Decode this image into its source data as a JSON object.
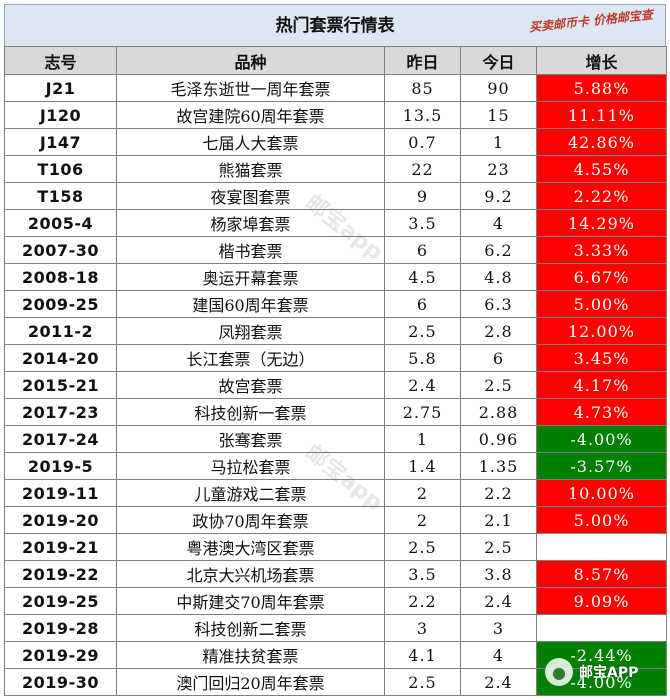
{
  "title": "热门套票行情表",
  "stamp": "买卖邮币卡 价格邮宝查",
  "watermark": "邮宝app",
  "badge": {
    "icon": "chat-bubble-icon",
    "label": "邮宝APP"
  },
  "colors": {
    "up": "#ff0000",
    "down": "#008000",
    "header": "#d9d9d9",
    "title": "#dbe7f3"
  },
  "columns": [
    "志号",
    "品种",
    "昨日",
    "今日",
    "增长"
  ],
  "rows": [
    {
      "code": "J21",
      "name": "毛泽东逝世一周年套票",
      "yesterday": "85",
      "today": "90",
      "growth": "5.88%",
      "trend": "up"
    },
    {
      "code": "J120",
      "name": "故宫建院60周年套票",
      "yesterday": "13.5",
      "today": "15",
      "growth": "11.11%",
      "trend": "up"
    },
    {
      "code": "J147",
      "name": "七届人大套票",
      "yesterday": "0.7",
      "today": "1",
      "growth": "42.86%",
      "trend": "up"
    },
    {
      "code": "T106",
      "name": "熊猫套票",
      "yesterday": "22",
      "today": "23",
      "growth": "4.55%",
      "trend": "up"
    },
    {
      "code": "T158",
      "name": "夜宴图套票",
      "yesterday": "9",
      "today": "9.2",
      "growth": "2.22%",
      "trend": "up"
    },
    {
      "code": "2005-4",
      "name": "杨家埠套票",
      "yesterday": "3.5",
      "today": "4",
      "growth": "14.29%",
      "trend": "up"
    },
    {
      "code": "2007-30",
      "name": "楷书套票",
      "yesterday": "6",
      "today": "6.2",
      "growth": "3.33%",
      "trend": "up"
    },
    {
      "code": "2008-18",
      "name": "奥运开幕套票",
      "yesterday": "4.5",
      "today": "4.8",
      "growth": "6.67%",
      "trend": "up"
    },
    {
      "code": "2009-25",
      "name": "建国60周年套票",
      "yesterday": "6",
      "today": "6.3",
      "growth": "5.00%",
      "trend": "up"
    },
    {
      "code": "2011-2",
      "name": "凤翔套票",
      "yesterday": "2.5",
      "today": "2.8",
      "growth": "12.00%",
      "trend": "up"
    },
    {
      "code": "2014-20",
      "name": "长江套票（无边）",
      "yesterday": "5.8",
      "today": "6",
      "growth": "3.45%",
      "trend": "up"
    },
    {
      "code": "2015-21",
      "name": "故宫套票",
      "yesterday": "2.4",
      "today": "2.5",
      "growth": "4.17%",
      "trend": "up"
    },
    {
      "code": "2017-23",
      "name": "科技创新一套票",
      "yesterday": "2.75",
      "today": "2.88",
      "growth": "4.73%",
      "trend": "up"
    },
    {
      "code": "2017-24",
      "name": "张骞套票",
      "yesterday": "1",
      "today": "0.96",
      "growth": "-4.00%",
      "trend": "down"
    },
    {
      "code": "2019-5",
      "name": "马拉松套票",
      "yesterday": "1.4",
      "today": "1.35",
      "growth": "-3.57%",
      "trend": "down"
    },
    {
      "code": "2019-11",
      "name": "儿童游戏二套票",
      "yesterday": "2",
      "today": "2.2",
      "growth": "10.00%",
      "trend": "up"
    },
    {
      "code": "2019-20",
      "name": "政协70周年套票",
      "yesterday": "2",
      "today": "2.1",
      "growth": "5.00%",
      "trend": "up"
    },
    {
      "code": "2019-21",
      "name": "粤港澳大湾区套票",
      "yesterday": "2.5",
      "today": "2.5",
      "growth": "",
      "trend": "blank"
    },
    {
      "code": "2019-22",
      "name": "北京大兴机场套票",
      "yesterday": "3.5",
      "today": "3.8",
      "growth": "8.57%",
      "trend": "up"
    },
    {
      "code": "2019-25",
      "name": "中斯建交70周年套票",
      "yesterday": "2.2",
      "today": "2.4",
      "growth": "9.09%",
      "trend": "up"
    },
    {
      "code": "2019-28",
      "name": "科技创新二套票",
      "yesterday": "3",
      "today": "3",
      "growth": "",
      "trend": "blank"
    },
    {
      "code": "2019-29",
      "name": "精准扶贫套票",
      "yesterday": "4.1",
      "today": "4",
      "growth": "-2.44%",
      "trend": "down"
    },
    {
      "code": "2019-30",
      "name": "澳门回归20周年套票",
      "yesterday": "2.5",
      "today": "2.4",
      "growth": "-4.00%",
      "trend": "down"
    }
  ]
}
